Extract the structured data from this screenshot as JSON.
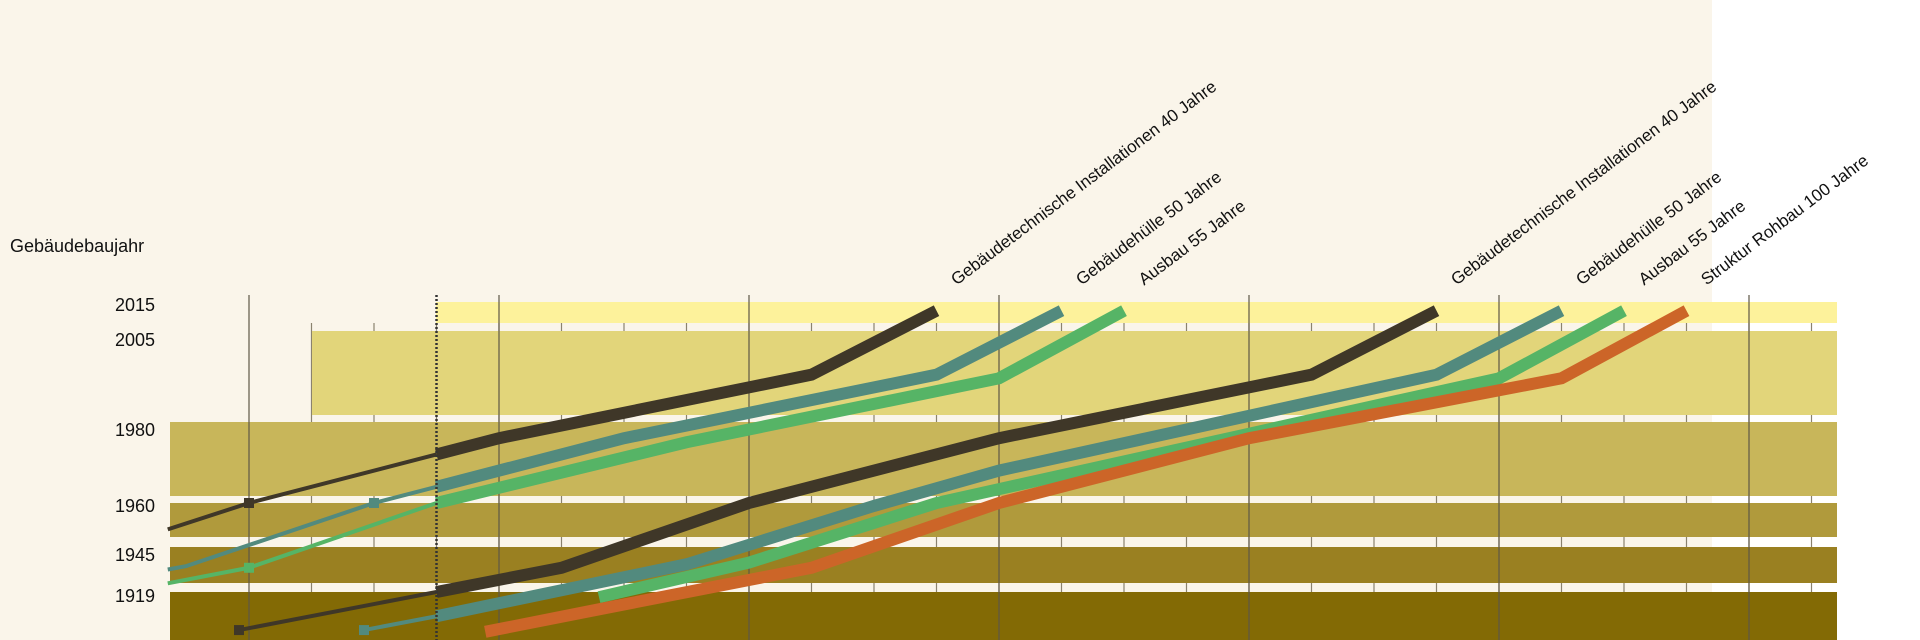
{
  "chart_data": {
    "type": "line",
    "ylabel": "Gebäudebaujahr",
    "y_ticks": [
      "2015",
      "2005",
      "1980",
      "1960",
      "1945",
      "1919"
    ],
    "grid": true,
    "bands": [
      {
        "label": "2015",
        "color": "#fdf29b"
      },
      {
        "label": "2005",
        "color": "#e2d57a"
      },
      {
        "label": "1980",
        "color": "#c8b65a"
      },
      {
        "label": "1960",
        "color": "#b09a3c"
      },
      {
        "label": "1945",
        "color": "#9a8021"
      },
      {
        "label": "1919",
        "color": "#836a05"
      }
    ],
    "series": [
      {
        "name": "Gebäudetechnische Installationen 40 Jahre",
        "color": "#3f3728",
        "marker_x": 0,
        "points": [
          [
            -1.3,
            1951
          ],
          [
            0,
            1960
          ],
          [
            3,
            1972
          ],
          [
            4,
            1976
          ],
          [
            9,
            1993
          ],
          [
            11,
            2012
          ]
        ]
      },
      {
        "name": "Gebäudehülle 50 Jahre",
        "color": "#528a7e",
        "marker_x": 2,
        "points": [
          [
            -1.3,
            1932
          ],
          [
            -1,
            1934
          ],
          [
            2,
            1960
          ],
          [
            3,
            1964
          ],
          [
            6,
            1976
          ],
          [
            11,
            1993
          ],
          [
            13,
            2012
          ]
        ]
      },
      {
        "name": "Ausbau 55 Jahre",
        "color": "#56b466",
        "marker_x": 0,
        "points": [
          [
            -1.3,
            1924
          ],
          [
            0,
            1933
          ],
          [
            3,
            1960
          ],
          [
            7,
            1975
          ],
          [
            12,
            1992
          ],
          [
            14,
            2012
          ]
        ]
      },
      {
        "name": "Gebäudetechnische Installationen 40 Jahre",
        "color": "#3f3728",
        "marker_x": -0.16,
        "points": [
          [
            -0.16,
            1897
          ],
          [
            3,
            1919
          ],
          [
            5,
            1933
          ],
          [
            8,
            1960
          ],
          [
            12,
            1976
          ],
          [
            17,
            1993
          ],
          [
            19,
            2012
          ]
        ]
      },
      {
        "name": "Gebäudehülle 50 Jahre",
        "color": "#528a7e",
        "marker_x": 1.84,
        "points": [
          [
            1.84,
            1897
          ],
          [
            3,
            1905
          ],
          [
            7,
            1935
          ],
          [
            10,
            1959
          ],
          [
            12,
            1968
          ],
          [
            19,
            1993
          ],
          [
            21,
            2012
          ]
        ]
      },
      {
        "name": "Ausbau 55 Jahre",
        "color": "#56b466",
        "points": [
          [
            2.94,
            1897
          ],
          [
            5.6,
            1916
          ],
          [
            8,
            1936
          ],
          [
            11,
            1960
          ],
          [
            20,
            1992
          ],
          [
            22,
            2012
          ]
        ]
      },
      {
        "name": "Struktur Rohbau 100 Jahre",
        "color": "#cc6528",
        "points": [
          [
            3.78,
            1896
          ],
          [
            5.6,
            1909
          ],
          [
            9,
            1933
          ],
          [
            12,
            1960
          ],
          [
            16,
            1976
          ],
          [
            21,
            1992
          ],
          [
            23,
            2012
          ]
        ]
      }
    ]
  }
}
